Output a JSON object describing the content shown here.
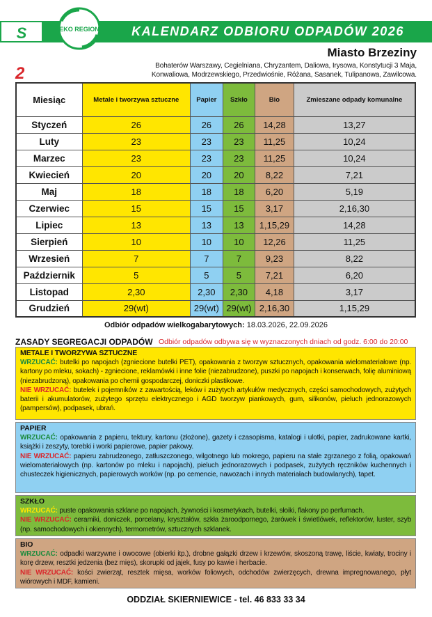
{
  "header": {
    "letter": "S",
    "logo": "EKO REGION",
    "title": "KALENDARZ ODBIORU ODPADÓW 2026"
  },
  "area": {
    "number": "2",
    "city": "Miasto Brzeziny",
    "streets": [
      "Bohaterów Warszawy, Cegielniana, Chryzantem, Daliowa, Irysowa, Konstytucji 3 Maja,",
      "Konwaliowa, Modrzewskiego, Przedwiośnie, Różana, Sasanek, Tulipanowa, Zawilcowa."
    ]
  },
  "table": {
    "columns": [
      "Miesiąc",
      "Metale i tworzywa sztuczne",
      "Papier",
      "Szkło",
      "Bio",
      "Zmieszane odpady komunalne"
    ],
    "rows": [
      [
        "Styczeń",
        "26",
        "26",
        "26",
        "14,28",
        "13,27"
      ],
      [
        "Luty",
        "23",
        "23",
        "23",
        "11,25",
        "10,24"
      ],
      [
        "Marzec",
        "23",
        "23",
        "23",
        "11,25",
        "10,24"
      ],
      [
        "Kwiecień",
        "20",
        "20",
        "20",
        "8,22",
        "7,21"
      ],
      [
        "Maj",
        "18",
        "18",
        "18",
        "6,20",
        "5,19"
      ],
      [
        "Czerwiec",
        "15",
        "15",
        "15",
        "3,17",
        "2,16,30"
      ],
      [
        "Lipiec",
        "13",
        "13",
        "13",
        "1,15,29",
        "14,28"
      ],
      [
        "Sierpień",
        "10",
        "10",
        "10",
        "12,26",
        "11,25"
      ],
      [
        "Wrzesień",
        "7",
        "7",
        "7",
        "9,23",
        "8,22"
      ],
      [
        "Październik",
        "5",
        "5",
        "5",
        "7,21",
        "6,20"
      ],
      [
        "Listopad",
        "2,30",
        "2,30",
        "2,30",
        "4,18",
        "3,17"
      ],
      [
        "Grudzień",
        "29(wt)",
        "29(wt)",
        "29(wt)",
        "2,16,30",
        "1,15,29"
      ]
    ]
  },
  "bulky": {
    "label": "Odbiór odpadów wielkogabarytowych:",
    "dates": "18.03.2026, 22.09.2026"
  },
  "rules": {
    "title": "ZASADY SEGREGACJI ODPADÓW",
    "note": "Odbiór odpadów odbywa się w wyznaczonych dniach od godz. 6:00 do 20:00",
    "sections": [
      {
        "title": "METALE I TWORZYWA SZTUCZNE",
        "yes_label": "WRZUCAĆ:",
        "yes": "butelki po napojach (zgniecione butelki PET), opakowania z tworzyw sztucznych, opakowania wielomateriałowe (np. kartony po mleku, sokach) - zgniecione, reklamówki i inne folie (niezabrudzone), puszki po napojach i konserwach, folię aluminiową (niezabrudzoną), opakowania po chemii gospodarczej, doniczki plastikowe.",
        "no_label": "NIE WRZUCAĆ:",
        "no": "butelek i pojemników z zawartością, leków i zużytych artykułów medycznych, części samochodowych, zużytych baterii i akumulatorów, zużytego sprzętu elektrycznego i AGD tworzyw piankowych, gum, silikonów, pieluch jednorazowych (pampersów), podpasek, ubrań."
      },
      {
        "title": "PAPIER",
        "yes_label": "WRZUCAĆ:",
        "yes": "opakowania z papieru, tektury, kartonu (złożone), gazety i czasopisma, katalogi i ulotki, papier, zadrukowane kartki, książki i zeszyty, torebki i worki papierowe, papier pakowy.",
        "no_label": "NIE WRZUCAĆ:",
        "no": "papieru zabrudzonego, zatłuszczonego, wilgotnego lub mokrego, papieru na stałe zgrzanego z folią, opakowań wielomateriałowych (np. kartonów po mleku i napojach), pieluch jednorazowych i podpasek, zużytych ręczników kuchennych i chusteczek higienicznych, papierowych worków (np. po cemencie, nawozach i innych materiałach budowlanych), tapet."
      },
      {
        "title": "SZKŁO",
        "yes_label": "WRZUCAĆ:",
        "yes": "puste opakowania szklane po napojach, żywności i kosmetykach, butelki, słoiki, flakony po perfumach.",
        "no_label": "NIE WRZUCAĆ:",
        "no": "ceramiki, doniczek, porcelany, kryształów, szkła żaroodpornego, żarówek i świetlówek, reflektorów, luster, szyb (np. samochodowych i okiennych), termometrów, sztucznych szklanek."
      },
      {
        "title": "BIO",
        "yes_label": "WRZUCAĆ:",
        "yes": "odpadki warzywne i owocowe (obierki itp.), drobne gałązki drzew i krzewów, skoszoną trawę, liście, kwiaty, trociny i korę drzew, resztki jedzenia (bez mięs), skorupki od jajek, fusy po kawie i herbacie.",
        "no_label": "NIE WRZUCAĆ:",
        "no": "kości zwierząt, resztek mięsa, worków foliowych, odchodów zwierzęcych, drewna impregnowanego, płyt wiórowych i MDF, kamieni."
      }
    ]
  },
  "footer": "ODDZIAŁ SKIERNIEWICE - tel. 46 833 33 34"
}
